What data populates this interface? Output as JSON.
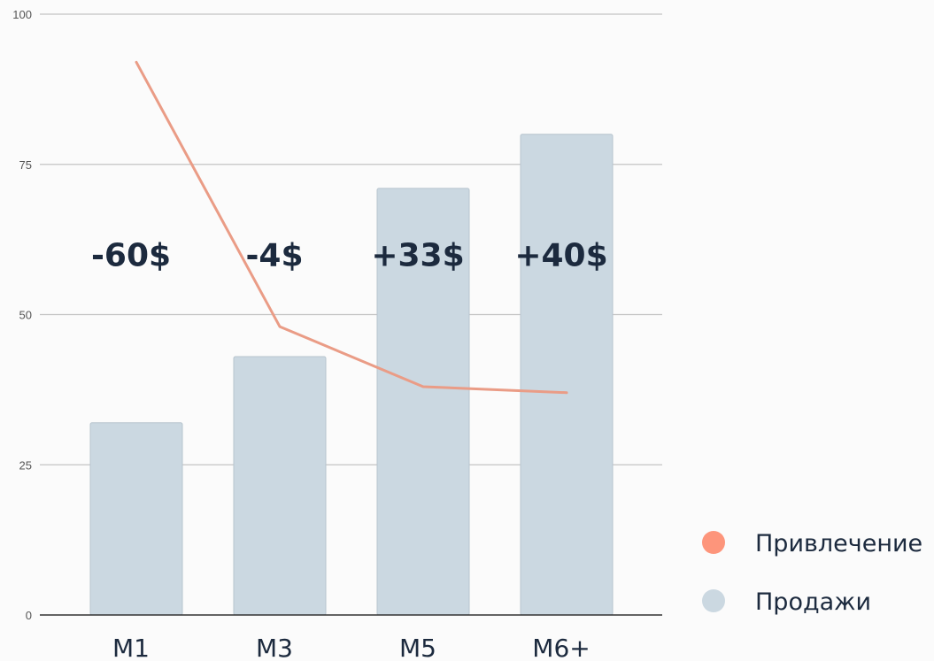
{
  "chart_data": {
    "type": "bar",
    "categories": [
      "M1",
      "M3",
      "M5",
      "M6+"
    ],
    "series": [
      {
        "name": "Продажи",
        "type": "bar",
        "color": "#cbd8e1",
        "values": [
          32,
          43,
          71,
          80
        ]
      },
      {
        "name": "Привлечение",
        "type": "line",
        "color": "#ea9c86",
        "values": [
          92,
          48,
          38,
          37
        ]
      }
    ],
    "annotations": [
      "-60$",
      "-4$",
      "+33$",
      "+40$"
    ],
    "annotation_level": 60,
    "yticks": [
      "0",
      "25",
      "50",
      "75",
      "100"
    ],
    "ylim": [
      0,
      100
    ],
    "grid": true,
    "legend": {
      "position": "right",
      "items": [
        {
          "label": "Привлечение",
          "color": "#fd957b"
        },
        {
          "label": "Продажи",
          "color": "#cbd8e1"
        }
      ]
    }
  }
}
